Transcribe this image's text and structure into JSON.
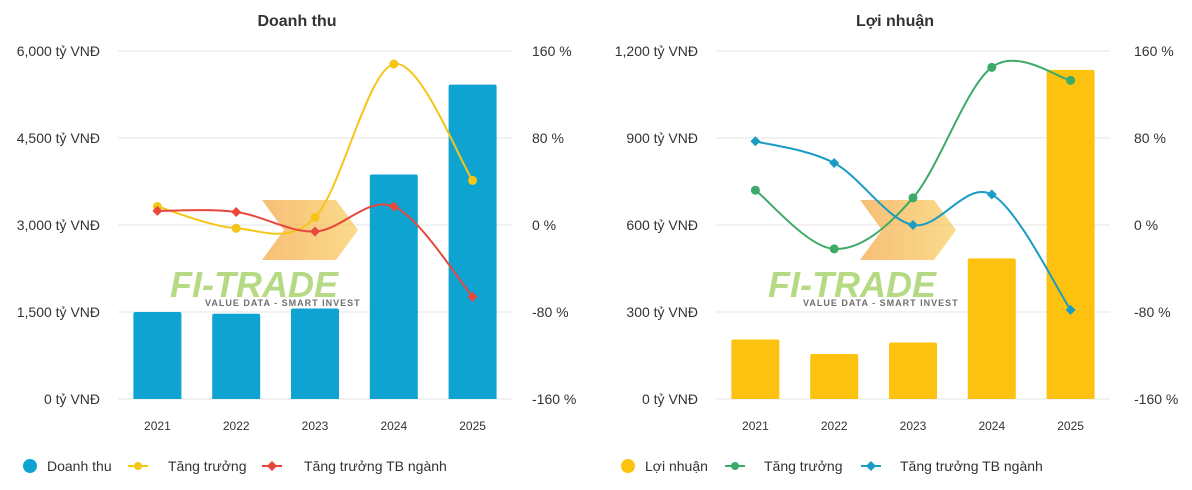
{
  "colors": {
    "revenue_bar": "#0fa3d1",
    "revenue_growth": "#f5c518",
    "revenue_industry": "#e8473c",
    "profit_bar": "#fdc20f",
    "profit_growth": "#3daa68",
    "profit_industry": "#1a9cc4"
  },
  "watermark": {
    "brand": "FI-TRADE",
    "tagline": "VALUE DATA - SMART INVEST"
  },
  "chart_data": [
    {
      "type": "bar",
      "title": "Doanh thu",
      "categories": [
        "2021",
        "2022",
        "2023",
        "2024",
        "2025"
      ],
      "y_left": {
        "ticks": [
          "6,000 tỷ VNĐ",
          "4,500 tỷ VNĐ",
          "3,000 tỷ VNĐ",
          "1,500 tỷ VNĐ",
          "0 tỷ VNĐ"
        ],
        "range": [
          0,
          6000
        ]
      },
      "y_right": {
        "ticks": [
          "160 %",
          "80 %",
          "0 %",
          "-80 %",
          "-160 %"
        ],
        "range": [
          -160,
          160
        ]
      },
      "series": [
        {
          "name": "Doanh thu",
          "kind": "bar",
          "axis": "left",
          "color_key": "revenue_bar",
          "values": [
            1500,
            1470,
            1560,
            3870,
            5420
          ]
        },
        {
          "name": "Tăng trưởng",
          "kind": "line",
          "axis": "right",
          "color_key": "revenue_growth",
          "values": [
            17,
            -3,
            7,
            148,
            41
          ]
        },
        {
          "name": "Tăng trưởng TB ngành",
          "kind": "line",
          "axis": "right",
          "color_key": "revenue_industry",
          "values": [
            13,
            12,
            -6,
            17,
            -66
          ]
        }
      ],
      "legend": [
        {
          "label": "Doanh thu",
          "shape": "circle",
          "color_key": "revenue_bar"
        },
        {
          "label": "Tăng trưởng",
          "shape": "line",
          "color_key": "revenue_growth"
        },
        {
          "label": "Tăng trưởng TB ngành",
          "shape": "line-diamond",
          "color_key": "revenue_industry"
        }
      ]
    },
    {
      "type": "bar",
      "title": "Lợi nhuận",
      "categories": [
        "2021",
        "2022",
        "2023",
        "2024",
        "2025"
      ],
      "y_left": {
        "ticks": [
          "1,200 tỷ VNĐ",
          "900 tỷ VNĐ",
          "600 tỷ VNĐ",
          "300 tỷ VNĐ",
          "0 tỷ VNĐ"
        ],
        "range": [
          0,
          1200
        ]
      },
      "y_right": {
        "ticks": [
          "160 %",
          "80 %",
          "0 %",
          "-80 %",
          "-160 %"
        ],
        "range": [
          -160,
          160
        ]
      },
      "series": [
        {
          "name": "Lợi nhuận",
          "kind": "bar",
          "axis": "left",
          "color_key": "profit_bar",
          "values": [
            205,
            155,
            195,
            485,
            1135
          ]
        },
        {
          "name": "Tăng trưởng",
          "kind": "line",
          "axis": "right",
          "color_key": "profit_growth",
          "values": [
            32,
            -22,
            25,
            145,
            133
          ]
        },
        {
          "name": "Tăng trưởng TB ngành",
          "kind": "line",
          "axis": "right",
          "color_key": "profit_industry",
          "values": [
            77,
            57,
            0,
            28,
            -78
          ]
        }
      ],
      "legend": [
        {
          "label": "Lợi nhuận",
          "shape": "circle",
          "color_key": "profit_bar"
        },
        {
          "label": "Tăng trưởng",
          "shape": "line",
          "color_key": "profit_growth"
        },
        {
          "label": "Tăng trưởng TB ngành",
          "shape": "line-diamond",
          "color_key": "profit_industry"
        }
      ]
    }
  ]
}
